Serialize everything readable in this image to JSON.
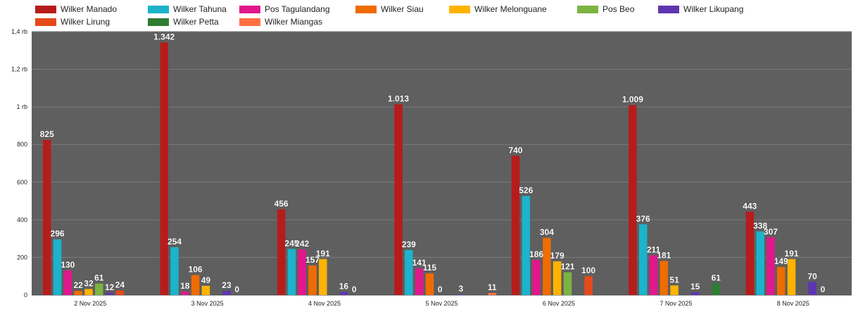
{
  "chart_data": {
    "type": "bar",
    "categories": [
      "2 Nov 2025",
      "3 Nov 2025",
      "4 Nov 2025",
      "5 Nov 2025",
      "6 Nov 2025",
      "7 Nov 2025",
      "8 Nov 2025"
    ],
    "series": [
      {
        "name": "Wilker Manado",
        "color": "#b71c1c",
        "values": [
          825,
          1342,
          456,
          1013,
          740,
          1009,
          443
        ]
      },
      {
        "name": "Wilker Tahuna",
        "color": "#1cb3cc",
        "values": [
          296,
          254,
          245,
          239,
          526,
          376,
          338
        ]
      },
      {
        "name": "Pos Tagulandang",
        "color": "#e0188c",
        "values": [
          130,
          18,
          242,
          141,
          186,
          211,
          307
        ]
      },
      {
        "name": "Wilker Siau",
        "color": "#ef6c00",
        "values": [
          22,
          106,
          157,
          115,
          304,
          181,
          149
        ]
      },
      {
        "name": "Wilker Melonguane",
        "color": "#ffb300",
        "values": [
          32,
          49,
          191,
          0,
          179,
          51,
          191
        ]
      },
      {
        "name": "Pos Beo",
        "color": "#7cb342",
        "values": [
          61,
          null,
          null,
          null,
          121,
          null,
          null
        ]
      },
      {
        "name": "Wilker Likupang",
        "color": "#5e35b1",
        "values": [
          12,
          23,
          16,
          3,
          null,
          15,
          70
        ]
      },
      {
        "name": "Wilker Lirung",
        "color": "#e64a19",
        "values": [
          24,
          0,
          0,
          null,
          100,
          null,
          0
        ]
      },
      {
        "name": "Wilker Petta",
        "color": "#2e7d32",
        "values": [
          null,
          null,
          null,
          null,
          null,
          61,
          null
        ]
      },
      {
        "name": "Wilker Miangas",
        "color": "#ff7043",
        "values": [
          null,
          null,
          null,
          11,
          null,
          null,
          null
        ]
      }
    ],
    "data_labels": [
      [
        "825",
        "1.342",
        "456",
        "1.013",
        "740",
        "1.009",
        "443"
      ],
      [
        "296",
        "254",
        "245",
        "239",
        "526",
        "376",
        "338"
      ],
      [
        "130",
        "18",
        "242",
        "141",
        "186",
        "211",
        "307"
      ],
      [
        "22",
        "106",
        "157",
        "115",
        "304",
        "181",
        "149"
      ],
      [
        "32",
        "49",
        "191",
        "0",
        "179",
        "51",
        "191"
      ],
      [
        "61",
        "",
        "",
        "",
        "121",
        "",
        ""
      ],
      [
        "12",
        "23",
        "16",
        "3",
        "",
        "15",
        "70"
      ],
      [
        "24",
        "0",
        "0",
        "",
        "100",
        "",
        "0"
      ],
      [
        "",
        "",
        "",
        "",
        "",
        "61",
        ""
      ],
      [
        "",
        "",
        "",
        "11",
        "",
        "",
        ""
      ]
    ],
    "yticks": [
      0,
      200,
      400,
      600,
      800,
      1000,
      1200,
      1400
    ],
    "ytick_labels": [
      "0",
      "200",
      "400",
      "600",
      "800",
      "1 rb",
      "1,2 rb",
      "1,4 rb"
    ],
    "ylim": [
      0,
      1400
    ],
    "grid": true,
    "legend_position": "top-left",
    "plot_background": "#5f5f5f",
    "grid_color": "#7b7b7b"
  }
}
